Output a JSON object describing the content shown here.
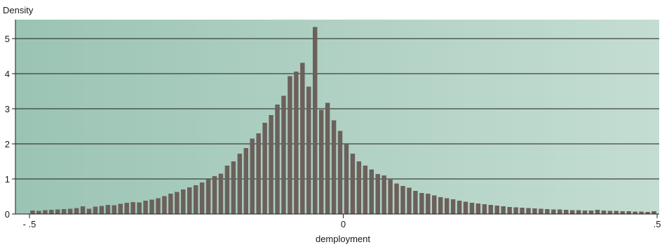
{
  "chart_data": {
    "type": "bar",
    "subtype": "histogram",
    "title": "",
    "ylabel": "Density",
    "xlabel": "demployment",
    "xlim": [
      -0.5,
      0.5
    ],
    "ylim": [
      0,
      5.5
    ],
    "x_ticks": [
      {
        "value": -0.5,
        "label": "- .5"
      },
      {
        "value": 0,
        "label": "0"
      },
      {
        "value": 0.5,
        "label": ".5"
      }
    ],
    "y_ticks": [
      {
        "value": 0,
        "label": "0"
      },
      {
        "value": 1,
        "label": "1"
      },
      {
        "value": 2,
        "label": "2"
      },
      {
        "value": 3,
        "label": "3"
      },
      {
        "value": 4,
        "label": "4"
      },
      {
        "value": 5,
        "label": "5"
      }
    ],
    "grid": "horizontal",
    "bar_color": "#6b605a",
    "background_gradient": [
      "#9bc4b4",
      "#c4ddd2"
    ],
    "x": [
      -0.495,
      -0.485,
      -0.475,
      -0.465,
      -0.455,
      -0.445,
      -0.435,
      -0.425,
      -0.415,
      -0.405,
      -0.395,
      -0.385,
      -0.375,
      -0.365,
      -0.355,
      -0.345,
      -0.335,
      -0.325,
      -0.315,
      -0.305,
      -0.295,
      -0.285,
      -0.275,
      -0.265,
      -0.255,
      -0.245,
      -0.235,
      -0.225,
      -0.215,
      -0.205,
      -0.195,
      -0.185,
      -0.175,
      -0.165,
      -0.155,
      -0.145,
      -0.135,
      -0.125,
      -0.115,
      -0.105,
      -0.095,
      -0.085,
      -0.075,
      -0.065,
      -0.055,
      -0.045,
      -0.035,
      -0.025,
      -0.015,
      -0.005,
      0.005,
      0.015,
      0.025,
      0.035,
      0.045,
      0.055,
      0.065,
      0.075,
      0.085,
      0.095,
      0.105,
      0.115,
      0.125,
      0.135,
      0.145,
      0.155,
      0.165,
      0.175,
      0.185,
      0.195,
      0.205,
      0.215,
      0.225,
      0.235,
      0.245,
      0.255,
      0.265,
      0.275,
      0.285,
      0.295,
      0.305,
      0.315,
      0.325,
      0.335,
      0.345,
      0.355,
      0.365,
      0.375,
      0.385,
      0.395,
      0.405,
      0.415,
      0.425,
      0.435,
      0.445,
      0.455,
      0.465,
      0.475,
      0.485,
      0.495
    ],
    "values": [
      0.1,
      0.09,
      0.11,
      0.12,
      0.13,
      0.14,
      0.15,
      0.17,
      0.22,
      0.15,
      0.21,
      0.23,
      0.26,
      0.25,
      0.29,
      0.32,
      0.34,
      0.33,
      0.38,
      0.41,
      0.45,
      0.51,
      0.58,
      0.63,
      0.7,
      0.76,
      0.82,
      0.9,
      1.0,
      1.08,
      1.15,
      1.38,
      1.5,
      1.72,
      1.88,
      2.15,
      2.3,
      2.6,
      2.82,
      3.12,
      3.37,
      3.93,
      4.06,
      4.31,
      3.63,
      5.33,
      2.97,
      3.17,
      2.67,
      2.37,
      2.0,
      1.72,
      1.5,
      1.38,
      1.27,
      1.14,
      1.1,
      0.98,
      0.87,
      0.8,
      0.75,
      0.66,
      0.6,
      0.58,
      0.53,
      0.48,
      0.45,
      0.42,
      0.38,
      0.35,
      0.32,
      0.3,
      0.28,
      0.26,
      0.24,
      0.22,
      0.2,
      0.19,
      0.18,
      0.17,
      0.16,
      0.15,
      0.14,
      0.13,
      0.13,
      0.12,
      0.11,
      0.11,
      0.1,
      0.1,
      0.12,
      0.1,
      0.09,
      0.09,
      0.08,
      0.08,
      0.07,
      0.07,
      0.06,
      0.08
    ]
  }
}
